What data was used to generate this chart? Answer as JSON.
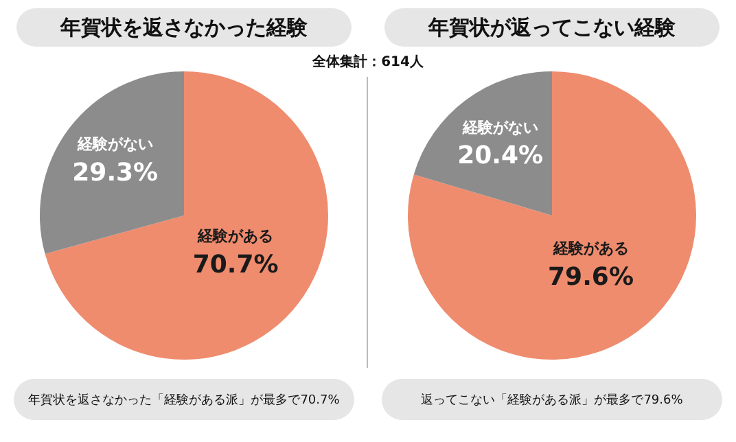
{
  "chart_data": [
    {
      "type": "pie",
      "title": "年賀状を返さなかった経験",
      "subtitle": "全体集計：614人",
      "categories": [
        "経験がある",
        "経験がない"
      ],
      "values": [
        70.7,
        29.3
      ],
      "colors": [
        "#ef8c6e",
        "#8c8c8c"
      ],
      "value_labels": [
        "70.7%",
        "29.3%"
      ],
      "legend": false,
      "annotations": [
        "年賀状を返さなかった「経験がある派」が最多で70.7%"
      ]
    },
    {
      "type": "pie",
      "title": "年賀状が返ってこない経験",
      "categories": [
        "経験がある",
        "経験がない"
      ],
      "values": [
        79.6,
        20.4
      ],
      "colors": [
        "#ef8c6e",
        "#8c8c8c"
      ],
      "value_labels": [
        "79.6%",
        "20.4%"
      ],
      "legend": false,
      "annotations": [
        "返ってこない「経験がある派」が最多で79.6%"
      ]
    }
  ]
}
